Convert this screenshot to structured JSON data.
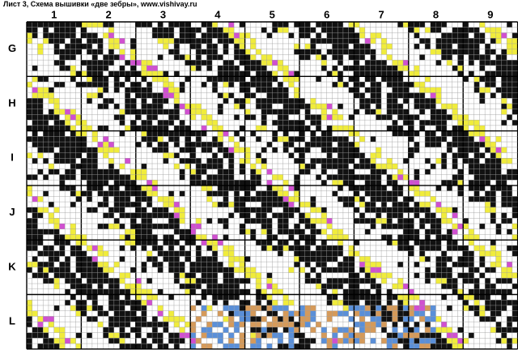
{
  "header": {
    "title": "Лист 3, Схема вышивки «две зебры», www.vishivay.ru"
  },
  "columns": [
    "1",
    "2",
    "3",
    "4",
    "5",
    "6",
    "7",
    "8",
    "9"
  ],
  "rows": [
    "G",
    "H",
    "I",
    "J",
    "K",
    "L"
  ]
}
